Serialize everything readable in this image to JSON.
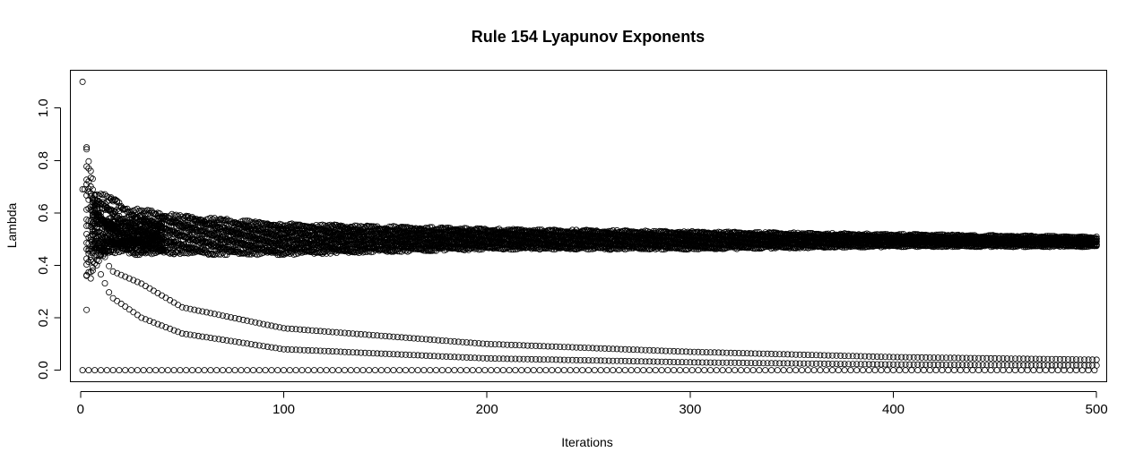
{
  "chart_data": {
    "type": "scatter",
    "title": "Rule 154 Lyapunov Exponents",
    "xlabel": "Iterations",
    "ylabel": "Lambda",
    "xlim": [
      -5,
      505
    ],
    "ylim": [
      -0.044,
      1.144
    ],
    "xticks": [
      0,
      100,
      200,
      300,
      400,
      500
    ],
    "xtick_labels": [
      "0",
      "100",
      "200",
      "300",
      "400",
      "500"
    ],
    "yticks": [
      0.0,
      0.2,
      0.4,
      0.6,
      0.8,
      1.0
    ],
    "ytick_labels": [
      "0.0",
      "0.2",
      "0.4",
      "0.6",
      "0.8",
      "1.0"
    ],
    "marker": "open-circle",
    "color": "#000000",
    "n_iterations": 500,
    "series": [
      {
        "name": "main band (many trajectories)",
        "description_points": "band centered near 0.5 narrowing from ~0.44–0.62 at start to ~0.47–0.50 at 500",
        "start_points": [
          {
            "x": 1,
            "y": 1.1
          },
          {
            "x": 1,
            "y": 0.69
          },
          {
            "x": 2,
            "y": 0.69
          },
          {
            "x": 3,
            "y": 0.85
          },
          {
            "x": 3,
            "y": 0.23
          },
          {
            "x": 3,
            "y": 0.36
          },
          {
            "x": 4,
            "y": 0.77
          },
          {
            "x": 4,
            "y": 0.46
          },
          {
            "x": 5,
            "y": 0.76
          },
          {
            "x": 5,
            "y": 0.35
          },
          {
            "x": 6,
            "y": 0.73
          },
          {
            "x": 6,
            "y": 0.38
          }
        ],
        "band_envelope": [
          {
            "x": 10,
            "low": 0.45,
            "high": 0.68
          },
          {
            "x": 25,
            "low": 0.44,
            "high": 0.62
          },
          {
            "x": 50,
            "low": 0.44,
            "high": 0.59
          },
          {
            "x": 100,
            "low": 0.44,
            "high": 0.56
          },
          {
            "x": 150,
            "low": 0.45,
            "high": 0.55
          },
          {
            "x": 200,
            "low": 0.46,
            "high": 0.54
          },
          {
            "x": 300,
            "low": 0.46,
            "high": 0.53
          },
          {
            "x": 400,
            "low": 0.47,
            "high": 0.52
          },
          {
            "x": 500,
            "low": 0.47,
            "high": 0.51
          }
        ]
      },
      {
        "name": "upper decaying trajectory",
        "points": [
          {
            "x": 8,
            "y": 0.5
          },
          {
            "x": 15,
            "y": 0.38
          },
          {
            "x": 30,
            "y": 0.33
          },
          {
            "x": 50,
            "y": 0.24
          },
          {
            "x": 100,
            "y": 0.16
          },
          {
            "x": 200,
            "y": 0.1
          },
          {
            "x": 300,
            "y": 0.07
          },
          {
            "x": 400,
            "y": 0.05
          },
          {
            "x": 500,
            "y": 0.04
          }
        ]
      },
      {
        "name": "lower decaying trajectory",
        "points": [
          {
            "x": 8,
            "y": 0.4
          },
          {
            "x": 15,
            "y": 0.28
          },
          {
            "x": 30,
            "y": 0.2
          },
          {
            "x": 50,
            "y": 0.14
          },
          {
            "x": 100,
            "y": 0.08
          },
          {
            "x": 200,
            "y": 0.045
          },
          {
            "x": 300,
            "y": 0.03
          },
          {
            "x": 400,
            "y": 0.022
          },
          {
            "x": 500,
            "y": 0.018
          }
        ]
      },
      {
        "name": "zero trajectory",
        "points": [
          {
            "x": 1,
            "y": 0.0
          },
          {
            "x": 500,
            "y": 0.0
          }
        ]
      }
    ]
  }
}
